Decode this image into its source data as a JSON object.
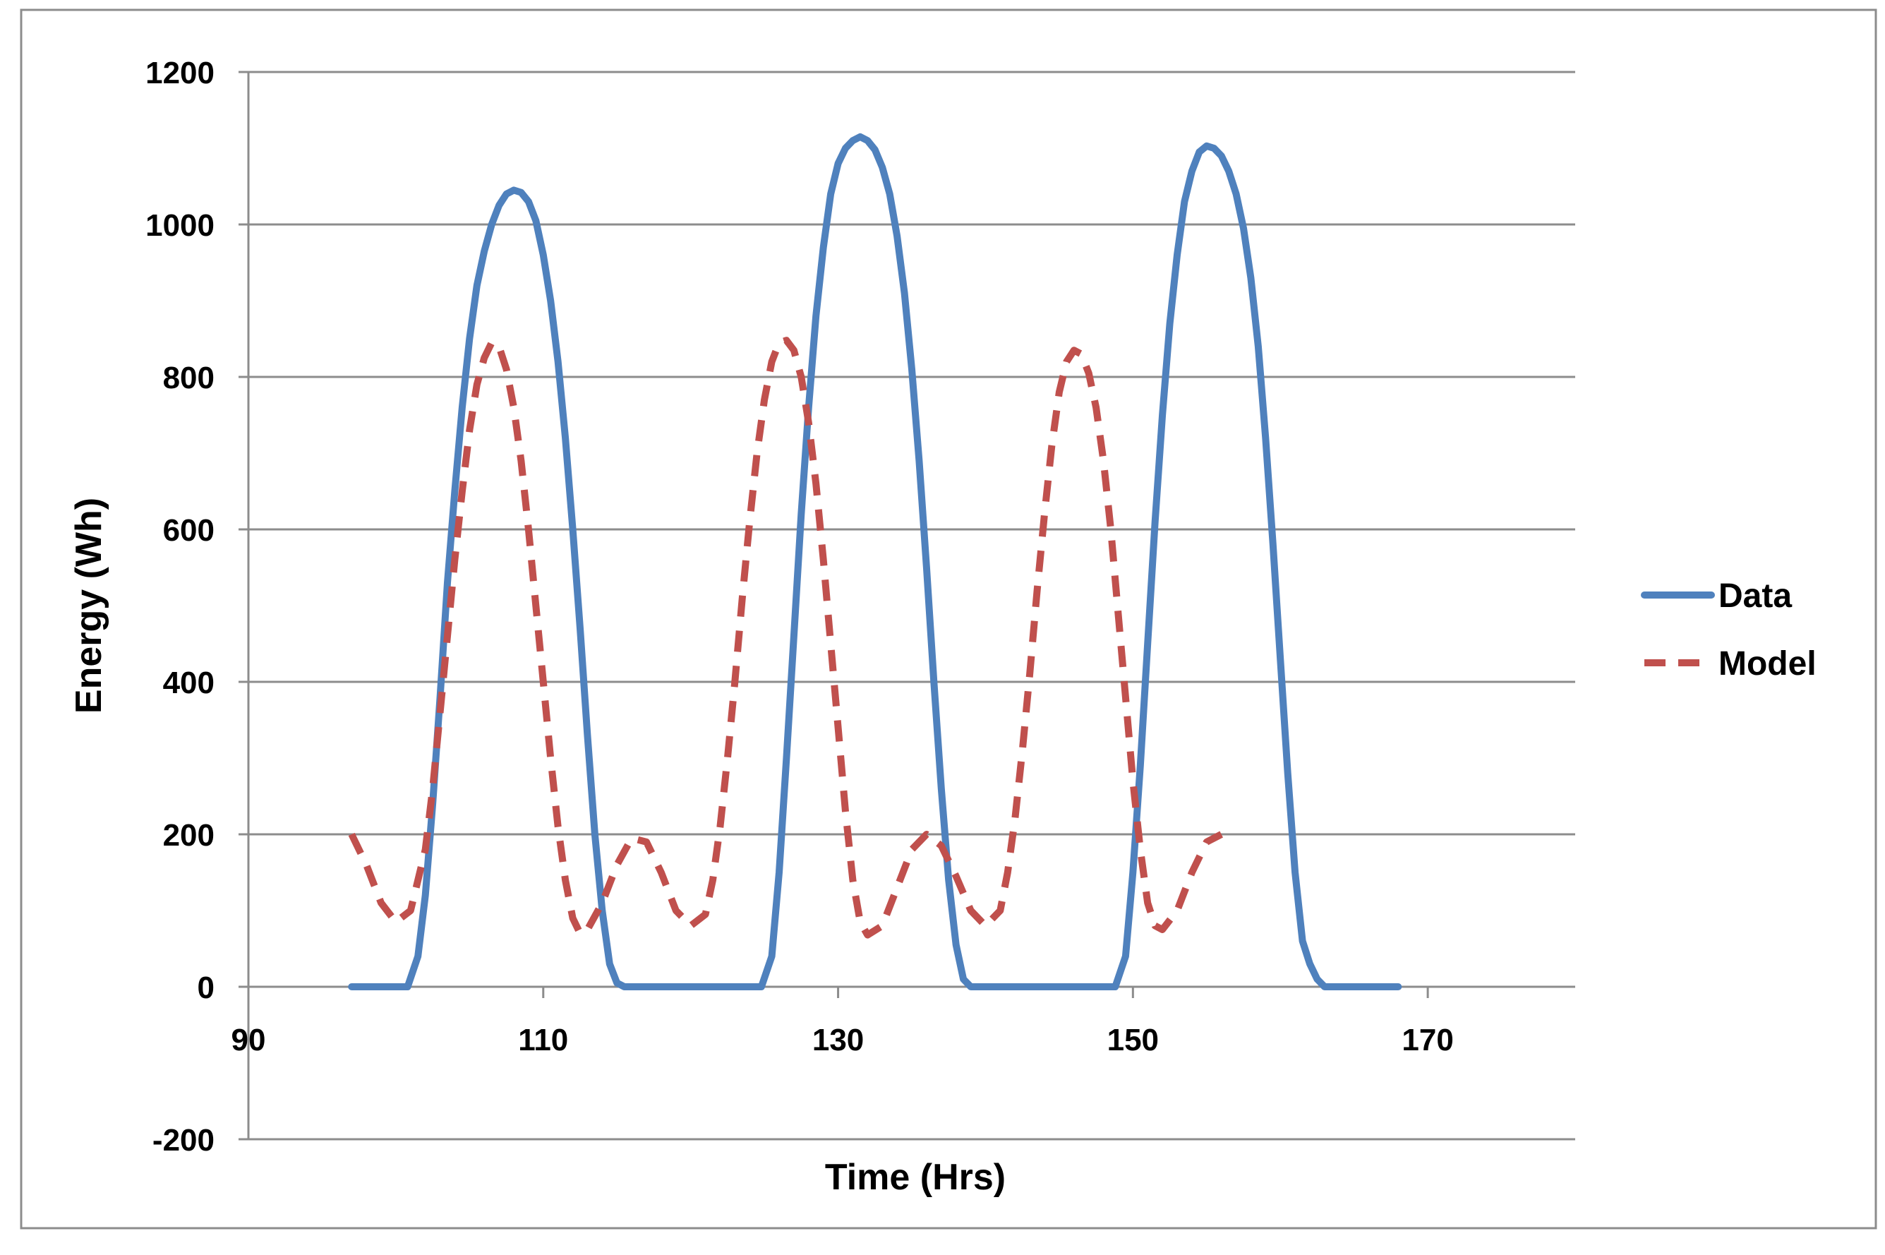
{
  "chart_data": {
    "type": "line",
    "xlabel": "Time (Hrs)",
    "ylabel": "Energy (Wh)",
    "xlim": [
      90,
      180
    ],
    "ylim": [
      -200,
      1200
    ],
    "x_ticks": [
      90,
      110,
      130,
      150,
      170
    ],
    "x_tick_labels": [
      "90",
      "110",
      "130",
      "150",
      "170"
    ],
    "y_ticks": [
      -200,
      0,
      200,
      400,
      600,
      800,
      1000,
      1200
    ],
    "y_tick_labels": [
      "-200",
      "0",
      "200",
      "400",
      "600",
      "800",
      "1000",
      "1200"
    ],
    "grid": "horizontal",
    "legend_position": "right",
    "series": [
      {
        "name": "Data",
        "color": "#4f81bd",
        "style": "solid",
        "points": [
          [
            97,
            0
          ],
          [
            98,
            0
          ],
          [
            99,
            0
          ],
          [
            100,
            0
          ],
          [
            100.8,
            0
          ],
          [
            101.5,
            40
          ],
          [
            102,
            120
          ],
          [
            102.5,
            240
          ],
          [
            103,
            380
          ],
          [
            103.5,
            530
          ],
          [
            104,
            650
          ],
          [
            104.5,
            760
          ],
          [
            105,
            850
          ],
          [
            105.5,
            920
          ],
          [
            106,
            965
          ],
          [
            106.5,
            1000
          ],
          [
            107,
            1025
          ],
          [
            107.5,
            1040
          ],
          [
            108,
            1045
          ],
          [
            108.5,
            1042
          ],
          [
            109,
            1030
          ],
          [
            109.5,
            1005
          ],
          [
            110,
            960
          ],
          [
            110.5,
            900
          ],
          [
            111,
            820
          ],
          [
            111.5,
            720
          ],
          [
            112,
            600
          ],
          [
            112.5,
            470
          ],
          [
            113,
            330
          ],
          [
            113.5,
            200
          ],
          [
            114,
            100
          ],
          [
            114.5,
            30
          ],
          [
            115,
            5
          ],
          [
            115.5,
            0
          ],
          [
            116,
            0
          ],
          [
            118,
            0
          ],
          [
            120,
            0
          ],
          [
            122,
            0
          ],
          [
            124,
            0
          ],
          [
            124.8,
            0
          ],
          [
            125.5,
            40
          ],
          [
            126,
            150
          ],
          [
            126.5,
            300
          ],
          [
            127,
            460
          ],
          [
            127.5,
            620
          ],
          [
            128,
            760
          ],
          [
            128.5,
            880
          ],
          [
            129,
            970
          ],
          [
            129.5,
            1040
          ],
          [
            130,
            1080
          ],
          [
            130.5,
            1100
          ],
          [
            131,
            1110
          ],
          [
            131.5,
            1115
          ],
          [
            132,
            1110
          ],
          [
            132.5,
            1098
          ],
          [
            133,
            1075
          ],
          [
            133.5,
            1040
          ],
          [
            134,
            985
          ],
          [
            134.5,
            910
          ],
          [
            135,
            810
          ],
          [
            135.5,
            690
          ],
          [
            136,
            550
          ],
          [
            136.5,
            400
          ],
          [
            137,
            260
          ],
          [
            137.5,
            140
          ],
          [
            138,
            55
          ],
          [
            138.5,
            10
          ],
          [
            139,
            0
          ],
          [
            140,
            0
          ],
          [
            142,
            0
          ],
          [
            144,
            0
          ],
          [
            146,
            0
          ],
          [
            148,
            0
          ],
          [
            148.8,
            0
          ],
          [
            149.5,
            40
          ],
          [
            150,
            150
          ],
          [
            150.5,
            290
          ],
          [
            151,
            450
          ],
          [
            151.5,
            610
          ],
          [
            152,
            750
          ],
          [
            152.5,
            870
          ],
          [
            153,
            960
          ],
          [
            153.5,
            1030
          ],
          [
            154,
            1070
          ],
          [
            154.5,
            1095
          ],
          [
            155,
            1103
          ],
          [
            155.5,
            1100
          ],
          [
            156,
            1090
          ],
          [
            156.5,
            1070
          ],
          [
            157,
            1040
          ],
          [
            157.5,
            995
          ],
          [
            158,
            930
          ],
          [
            158.5,
            840
          ],
          [
            159,
            720
          ],
          [
            159.5,
            580
          ],
          [
            160,
            430
          ],
          [
            160.5,
            280
          ],
          [
            161,
            150
          ],
          [
            161.5,
            60
          ],
          [
            162,
            30
          ],
          [
            162.5,
            10
          ],
          [
            163,
            0
          ],
          [
            164,
            0
          ],
          [
            166,
            0
          ],
          [
            168,
            0
          ]
        ]
      },
      {
        "name": "Model",
        "color": "#c0504d",
        "style": "dashed",
        "points": [
          [
            97,
            200
          ],
          [
            98,
            160
          ],
          [
            99,
            110
          ],
          [
            100,
            85
          ],
          [
            101,
            100
          ],
          [
            102,
            180
          ],
          [
            102.5,
            260
          ],
          [
            103,
            360
          ],
          [
            103.5,
            460
          ],
          [
            104,
            560
          ],
          [
            104.5,
            650
          ],
          [
            105,
            730
          ],
          [
            105.5,
            790
          ],
          [
            106,
            825
          ],
          [
            106.5,
            845
          ],
          [
            107,
            840
          ],
          [
            107.5,
            810
          ],
          [
            108,
            760
          ],
          [
            108.5,
            690
          ],
          [
            109,
            600
          ],
          [
            109.5,
            500
          ],
          [
            110,
            400
          ],
          [
            110.5,
            300
          ],
          [
            111,
            210
          ],
          [
            111.5,
            140
          ],
          [
            112,
            90
          ],
          [
            112.5,
            70
          ],
          [
            113,
            75
          ],
          [
            114,
            110
          ],
          [
            115,
            160
          ],
          [
            116,
            195
          ],
          [
            117,
            190
          ],
          [
            118,
            150
          ],
          [
            119,
            100
          ],
          [
            120,
            80
          ],
          [
            121,
            95
          ],
          [
            121.5,
            140
          ],
          [
            122,
            210
          ],
          [
            122.5,
            300
          ],
          [
            123,
            400
          ],
          [
            123.5,
            510
          ],
          [
            124,
            610
          ],
          [
            124.5,
            700
          ],
          [
            125,
            770
          ],
          [
            125.5,
            820
          ],
          [
            126,
            845
          ],
          [
            126.5,
            848
          ],
          [
            127,
            835
          ],
          [
            127.5,
            800
          ],
          [
            128,
            740
          ],
          [
            128.5,
            660
          ],
          [
            129,
            560
          ],
          [
            129.5,
            450
          ],
          [
            130,
            340
          ],
          [
            130.5,
            230
          ],
          [
            131,
            140
          ],
          [
            131.5,
            85
          ],
          [
            132,
            68
          ],
          [
            133,
            80
          ],
          [
            134,
            130
          ],
          [
            135,
            180
          ],
          [
            136,
            200
          ],
          [
            137,
            185
          ],
          [
            138,
            145
          ],
          [
            139,
            100
          ],
          [
            140,
            80
          ],
          [
            141,
            100
          ],
          [
            141.5,
            150
          ],
          [
            142,
            220
          ],
          [
            142.5,
            310
          ],
          [
            143,
            410
          ],
          [
            143.5,
            520
          ],
          [
            144,
            620
          ],
          [
            144.5,
            710
          ],
          [
            145,
            780
          ],
          [
            145.5,
            820
          ],
          [
            146,
            835
          ],
          [
            146.5,
            830
          ],
          [
            147,
            805
          ],
          [
            147.5,
            760
          ],
          [
            148,
            690
          ],
          [
            148.5,
            600
          ],
          [
            149,
            490
          ],
          [
            149.5,
            380
          ],
          [
            150,
            270
          ],
          [
            150.5,
            180
          ],
          [
            151,
            110
          ],
          [
            151.5,
            80
          ],
          [
            152,
            75
          ],
          [
            153,
            100
          ],
          [
            154,
            150
          ],
          [
            155,
            190
          ],
          [
            156,
            200
          ]
        ]
      }
    ]
  }
}
